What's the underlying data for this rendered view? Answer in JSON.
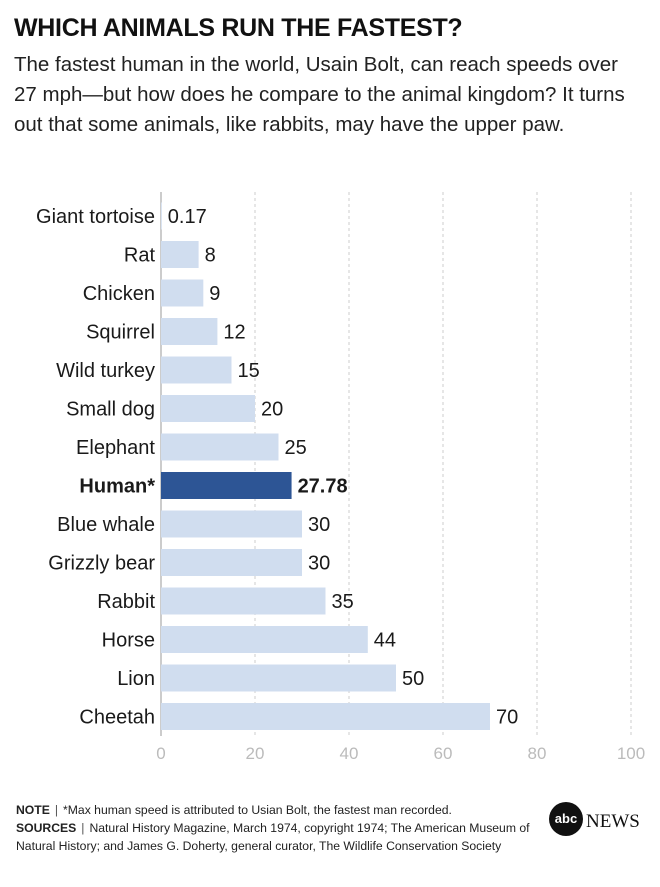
{
  "header": {
    "title": "WHICH ANIMALS RUN THE FASTEST?",
    "subtitle": "The fastest human in the world, Usain Bolt, can reach speeds over 27 mph—but how does he compare to the animal kingdom? It turns out that some animals, like rabbits, may have the upper paw."
  },
  "chart_data": {
    "type": "bar",
    "orientation": "horizontal",
    "categories": [
      "Giant tortoise",
      "Rat",
      "Chicken",
      "Squirrel",
      "Wild turkey",
      "Small dog",
      "Elephant",
      "Human*",
      "Blue whale",
      "Grizzly bear",
      "Rabbit",
      "Horse",
      "Lion",
      "Cheetah"
    ],
    "values": [
      0.17,
      8,
      9,
      12,
      15,
      20,
      25,
      27.78,
      30,
      30,
      35,
      44,
      50,
      70
    ],
    "value_labels": [
      "0.17",
      "8",
      "9",
      "12",
      "15",
      "20",
      "25",
      "27.78",
      "30",
      "30",
      "35",
      "44",
      "50",
      "70"
    ],
    "highlight": "Human*",
    "xlim": [
      0,
      100
    ],
    "xticks": [
      0,
      20,
      40,
      60,
      80,
      100
    ],
    "grid": "vertical dashed",
    "colors": {
      "bar": "#d0ddef",
      "highlight": "#2d5595",
      "grid": "#cccccc",
      "tick": "#bbbbbb"
    }
  },
  "footer": {
    "note_label": "NOTE",
    "note_text": "*Max human speed is attributed to Usian Bolt, the fastest man recorded.",
    "sources_label": "SOURCES",
    "sources_text": "Natural History Magazine, March 1974, copyright 1974; The American Museum of Natural History; and James G. Doherty, general curator, The Wildlife Conservation Society",
    "separator": "|"
  },
  "logo": {
    "mark": "abc",
    "word": "NEWS"
  }
}
